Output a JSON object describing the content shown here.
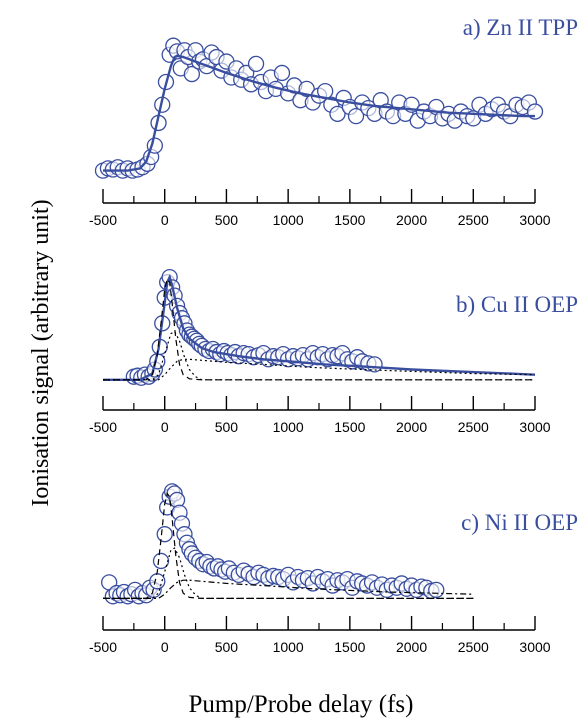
{
  "ylabel": "Ionisation signal (arbitrary unit)",
  "xlabel": "Pump/Probe delay (fs)",
  "colors": {
    "fit": "#3a4ea0",
    "marker": "#3a4ea0",
    "components": "#000000",
    "axis": "#000000"
  },
  "chart_data": [
    {
      "type": "scatter",
      "title": "a) Zn II TPP",
      "xlim": [
        -500,
        3000
      ],
      "xticks": [
        -500,
        0,
        500,
        1000,
        1500,
        2000,
        2500,
        3000
      ],
      "xtick_labels": [
        "-500",
        "0",
        "500",
        "1000",
        "1500",
        "2000",
        "2500",
        "3000"
      ],
      "ylim": [
        -0.1,
        1.15
      ],
      "grid": false,
      "series": [
        {
          "kind": "points",
          "x": [
            -500,
            -460,
            -420,
            -380,
            -340,
            -300,
            -260,
            -220,
            -180,
            -140,
            -110,
            -80,
            -50,
            -20,
            10,
            40,
            70,
            100,
            130,
            160,
            190,
            220,
            250,
            280,
            310,
            340,
            380,
            420,
            460,
            500,
            540,
            580,
            620,
            660,
            700,
            740,
            780,
            820,
            860,
            900,
            950,
            1000,
            1050,
            1100,
            1150,
            1200,
            1250,
            1300,
            1350,
            1400,
            1450,
            1500,
            1550,
            1600,
            1650,
            1700,
            1750,
            1800,
            1850,
            1900,
            1950,
            2000,
            2050,
            2100,
            2150,
            2200,
            2250,
            2300,
            2350,
            2400,
            2450,
            2500,
            2550,
            2600,
            2650,
            2700,
            2750,
            2800,
            2850,
            2900,
            2950,
            3000
          ],
          "y": [
            0.0,
            0.02,
            0.01,
            0.03,
            0.0,
            0.02,
            0.0,
            0.01,
            0.03,
            0.06,
            0.12,
            0.22,
            0.42,
            0.58,
            0.78,
            1.02,
            1.1,
            1.05,
            0.9,
            1.06,
            1.0,
            0.85,
            1.06,
            0.96,
            0.98,
            0.92,
            1.04,
            1.0,
            0.88,
            0.96,
            0.82,
            0.9,
            0.8,
            0.86,
            0.76,
            0.94,
            0.78,
            0.7,
            0.82,
            0.72,
            0.86,
            0.68,
            0.75,
            0.62,
            0.72,
            0.6,
            0.66,
            0.7,
            0.58,
            0.5,
            0.64,
            0.56,
            0.48,
            0.6,
            0.55,
            0.5,
            0.62,
            0.52,
            0.48,
            0.6,
            0.5,
            0.58,
            0.44,
            0.52,
            0.48,
            0.56,
            0.46,
            0.5,
            0.44,
            0.52,
            0.48,
            0.46,
            0.58,
            0.5,
            0.54,
            0.58,
            0.52,
            0.48,
            0.58,
            0.56,
            0.6,
            0.52
          ]
        },
        {
          "kind": "fit",
          "x": [
            -500,
            -300,
            -200,
            -150,
            -100,
            -50,
            0,
            50,
            80,
            100,
            150,
            200,
            300,
            400,
            500,
            700,
            900,
            1100,
            1300,
            1500,
            1700,
            1900,
            2100,
            2300,
            2500,
            2700,
            2900,
            3000
          ],
          "y": [
            0.0,
            0.0,
            0.02,
            0.08,
            0.24,
            0.48,
            0.72,
            0.92,
            1.0,
            1.01,
            1.0,
            0.98,
            0.94,
            0.9,
            0.86,
            0.79,
            0.73,
            0.68,
            0.64,
            0.6,
            0.57,
            0.55,
            0.53,
            0.51,
            0.5,
            0.49,
            0.48,
            0.48
          ]
        }
      ]
    },
    {
      "type": "scatter",
      "title": "b) Cu II OEP",
      "xlim": [
        -500,
        3000
      ],
      "xticks": [
        -500,
        0,
        500,
        1000,
        1500,
        2000,
        2500,
        3000
      ],
      "xtick_labels": [
        "-500",
        "0",
        "500",
        "1000",
        "1500",
        "2000",
        "2500",
        "3000"
      ],
      "ylim": [
        -0.08,
        1.05
      ],
      "grid": false,
      "series": [
        {
          "kind": "points",
          "x": [
            -250,
            -220,
            -190,
            -160,
            -130,
            -100,
            -80,
            -60,
            -40,
            -20,
            0,
            20,
            40,
            60,
            80,
            100,
            120,
            140,
            160,
            180,
            200,
            220,
            240,
            260,
            280,
            300,
            330,
            360,
            390,
            420,
            450,
            480,
            510,
            540,
            570,
            600,
            640,
            680,
            720,
            760,
            800,
            840,
            880,
            920,
            960,
            1000,
            1040,
            1080,
            1120,
            1160,
            1200,
            1240,
            1280,
            1320,
            1360,
            1400,
            1440,
            1480,
            1520,
            1560,
            1600,
            1650,
            1700
          ],
          "y": [
            0.03,
            0.04,
            0.02,
            0.05,
            0.03,
            0.06,
            0.1,
            0.18,
            0.32,
            0.55,
            0.8,
            0.95,
            1.0,
            0.9,
            0.82,
            0.72,
            0.65,
            0.6,
            0.55,
            0.48,
            0.44,
            0.42,
            0.4,
            0.38,
            0.35,
            0.33,
            0.3,
            0.28,
            0.3,
            0.27,
            0.25,
            0.28,
            0.26,
            0.24,
            0.27,
            0.23,
            0.26,
            0.25,
            0.22,
            0.24,
            0.26,
            0.2,
            0.23,
            0.22,
            0.25,
            0.2,
            0.23,
            0.21,
            0.24,
            0.2,
            0.26,
            0.22,
            0.25,
            0.2,
            0.24,
            0.23,
            0.26,
            0.2,
            0.18,
            0.22,
            0.18,
            0.16,
            0.15
          ]
        },
        {
          "kind": "fit",
          "x": [
            -500,
            -200,
            -100,
            -50,
            0,
            20,
            40,
            60,
            100,
            150,
            200,
            300,
            400,
            600,
            800,
            1000,
            1300,
            1600,
            2000,
            2400,
            2800,
            3000
          ],
          "y": [
            0.0,
            0.0,
            0.06,
            0.3,
            0.75,
            0.95,
            1.0,
            0.92,
            0.7,
            0.5,
            0.4,
            0.31,
            0.27,
            0.23,
            0.2,
            0.18,
            0.15,
            0.13,
            0.1,
            0.08,
            0.06,
            0.05
          ]
        },
        {
          "kind": "component",
          "dash": "6,4",
          "x": [
            -500,
            -150,
            -100,
            -60,
            -30,
            0,
            20,
            40,
            60,
            90,
            120,
            150,
            200,
            300,
            3000
          ],
          "y": [
            0.0,
            0.0,
            0.05,
            0.25,
            0.55,
            0.88,
            0.98,
            0.95,
            0.75,
            0.4,
            0.15,
            0.05,
            0.01,
            0.0,
            0.0
          ]
        },
        {
          "kind": "component",
          "dash": "2,3",
          "x": [
            -500,
            -100,
            -50,
            0,
            50,
            80,
            120,
            160,
            200,
            250,
            300,
            3000
          ],
          "y": [
            0.0,
            0.0,
            0.05,
            0.25,
            0.45,
            0.47,
            0.38,
            0.22,
            0.1,
            0.03,
            0.0,
            0.0
          ]
        },
        {
          "kind": "component",
          "dash": "2,3",
          "x": [
            -500,
            -50,
            0,
            50,
            100,
            150,
            200,
            300,
            500,
            800,
            1200,
            1800,
            2500,
            3000
          ],
          "y": [
            0.0,
            0.0,
            0.05,
            0.12,
            0.18,
            0.2,
            0.2,
            0.19,
            0.17,
            0.15,
            0.12,
            0.09,
            0.06,
            0.05
          ]
        }
      ]
    },
    {
      "type": "scatter",
      "title": "c) Ni II OEP",
      "xlim": [
        -500,
        3000
      ],
      "xticks": [
        -500,
        0,
        500,
        1000,
        1500,
        2000,
        2500,
        3000
      ],
      "xtick_labels": [
        "-500",
        "0",
        "500",
        "1000",
        "1500",
        "2000",
        "2500",
        "3000"
      ],
      "ylim": [
        -0.08,
        1.05
      ],
      "grid": false,
      "series": [
        {
          "kind": "points",
          "x": [
            -450,
            -420,
            -390,
            -360,
            -330,
            -300,
            -270,
            -240,
            -210,
            -180,
            -150,
            -120,
            -90,
            -60,
            -30,
            0,
            20,
            40,
            60,
            80,
            100,
            120,
            140,
            160,
            180,
            200,
            220,
            250,
            280,
            310,
            340,
            370,
            400,
            430,
            460,
            490,
            520,
            560,
            600,
            640,
            680,
            720,
            760,
            800,
            840,
            880,
            920,
            960,
            1000,
            1040,
            1080,
            1120,
            1160,
            1200,
            1240,
            1280,
            1320,
            1360,
            1400,
            1440,
            1480,
            1520,
            1560,
            1600,
            1640,
            1680,
            1720,
            1760,
            1800,
            1840,
            1880,
            1920,
            1960,
            2000,
            2040,
            2080,
            2120,
            2160,
            2200
          ],
          "y": [
            0.15,
            0.02,
            0.05,
            0.03,
            0.06,
            0.02,
            0.04,
            0.08,
            0.02,
            0.05,
            0.03,
            0.1,
            0.08,
            0.16,
            0.35,
            0.6,
            0.85,
            0.95,
            1.0,
            0.98,
            0.92,
            0.8,
            0.7,
            0.6,
            0.52,
            0.46,
            0.42,
            0.38,
            0.35,
            0.32,
            0.34,
            0.3,
            0.28,
            0.3,
            0.27,
            0.25,
            0.28,
            0.24,
            0.22,
            0.26,
            0.23,
            0.2,
            0.24,
            0.22,
            0.19,
            0.21,
            0.2,
            0.18,
            0.22,
            0.15,
            0.2,
            0.17,
            0.19,
            0.14,
            0.2,
            0.16,
            0.18,
            0.12,
            0.17,
            0.15,
            0.18,
            0.1,
            0.16,
            0.14,
            0.12,
            0.15,
            0.1,
            0.13,
            0.08,
            0.12,
            0.1,
            0.14,
            0.09,
            0.12,
            0.08,
            0.11,
            0.1,
            0.07,
            0.08
          ]
        },
        {
          "kind": "component",
          "dash": "6,4",
          "x": [
            -500,
            -150,
            -100,
            -60,
            -30,
            0,
            20,
            40,
            60,
            90,
            120,
            150,
            200,
            300,
            2500
          ],
          "y": [
            0.0,
            0.0,
            0.05,
            0.25,
            0.55,
            0.88,
            0.98,
            0.95,
            0.75,
            0.4,
            0.15,
            0.05,
            0.01,
            0.0,
            0.0
          ]
        },
        {
          "kind": "component",
          "dash": "2,3",
          "x": [
            -500,
            -100,
            -50,
            0,
            50,
            80,
            120,
            160,
            200,
            250,
            300,
            2500
          ],
          "y": [
            0.0,
            0.0,
            0.05,
            0.25,
            0.45,
            0.47,
            0.38,
            0.22,
            0.1,
            0.03,
            0.0,
            0.0
          ]
        },
        {
          "kind": "component",
          "dash": "6,3,2,3",
          "x": [
            -500,
            -50,
            0,
            50,
            100,
            150,
            200,
            300,
            500,
            800,
            1200,
            1800,
            2500
          ],
          "y": [
            0.0,
            0.0,
            0.04,
            0.1,
            0.15,
            0.17,
            0.17,
            0.16,
            0.14,
            0.12,
            0.09,
            0.06,
            0.04
          ]
        }
      ]
    }
  ]
}
